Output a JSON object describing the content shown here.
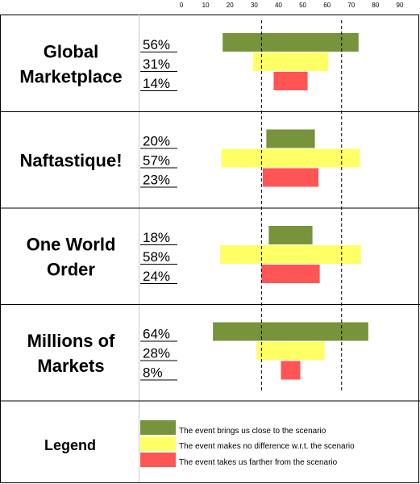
{
  "chart_data": {
    "type": "bar",
    "axis": {
      "ticks": [
        "0",
        "10",
        "20",
        "30",
        "40",
        "50",
        "60",
        "70",
        "80",
        "90"
      ],
      "xlim": [
        0,
        90
      ]
    },
    "reference_lines": [
      33,
      66
    ],
    "series": [
      {
        "name": "The event brings us close to the scenario",
        "color": "#77933c"
      },
      {
        "name": "The event makes no difference w.r.t. the scenario",
        "color": "#ffff66"
      },
      {
        "name": "The event takes us farther from the scenario",
        "color": "#ff5555"
      }
    ],
    "scenarios": [
      {
        "title_lines": [
          "Global",
          "Marketplace"
        ],
        "percent_labels": [
          "56%",
          "31%",
          "14%"
        ],
        "values": [
          56,
          31,
          14
        ]
      },
      {
        "title_lines": [
          "Naftastique!"
        ],
        "percent_labels": [
          "20%",
          "57%",
          "23%"
        ],
        "values": [
          20,
          57,
          23
        ]
      },
      {
        "title_lines": [
          "One World",
          "Order"
        ],
        "percent_labels": [
          "18%",
          "58%",
          "24%"
        ],
        "values": [
          18,
          58,
          24
        ]
      },
      {
        "title_lines": [
          "Millions of",
          "Markets"
        ],
        "percent_labels": [
          "64%",
          "28%",
          "8%"
        ],
        "values": [
          64,
          28,
          8
        ]
      }
    ]
  },
  "legend": {
    "title": "Legend",
    "colors": [
      "#77933c",
      "#ffff66",
      "#ff5555"
    ],
    "items": [
      "The event brings us close to the scenario",
      "The event makes no difference w.r.t. the scenario",
      "The event takes us farther from the scenario"
    ]
  }
}
